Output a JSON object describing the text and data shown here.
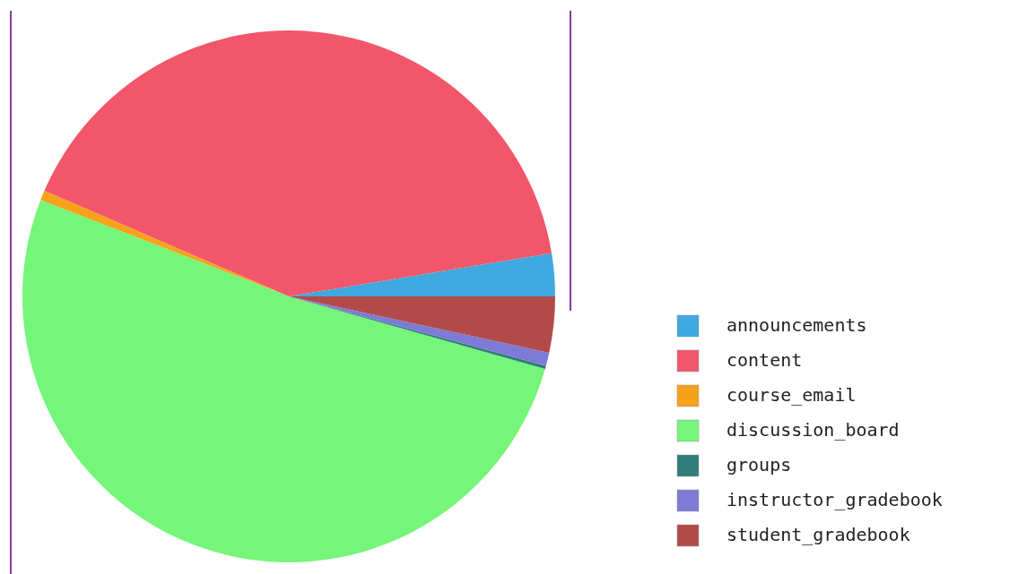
{
  "chart_data": {
    "type": "pie",
    "categories": [
      "announcements",
      "content",
      "course_email",
      "discussion_board",
      "groups",
      "instructor_gradebook",
      "student_gradebook"
    ],
    "values": [
      2.6,
      40.9,
      0.6,
      51.5,
      0.2,
      0.8,
      3.4
    ],
    "colors": [
      "#3fa9e0",
      "#f2566a",
      "#f7a21b",
      "#75f57a",
      "#2e7d7a",
      "#7d7bd6",
      "#b34a4a"
    ],
    "legend": "bottom right"
  }
}
